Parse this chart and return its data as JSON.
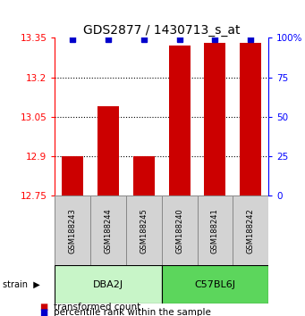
{
  "title": "GDS2877 / 1430713_s_at",
  "samples": [
    "GSM188243",
    "GSM188244",
    "GSM188245",
    "GSM188240",
    "GSM188241",
    "GSM188242"
  ],
  "group_colors": [
    "#c8f5c8",
    "#5cd65c"
  ],
  "transformed_counts": [
    12.9,
    13.09,
    12.9,
    13.32,
    13.33,
    13.33
  ],
  "percentile_ranks": [
    99,
    99,
    99,
    99,
    99,
    99
  ],
  "ylim": [
    12.75,
    13.35
  ],
  "yticks": [
    12.75,
    12.9,
    13.05,
    13.2,
    13.35
  ],
  "ytick_labels": [
    "12.75",
    "12.9",
    "13.05",
    "13.2",
    "13.35"
  ],
  "right_yticks": [
    0,
    25,
    50,
    75,
    100
  ],
  "right_ytick_labels": [
    "0",
    "25",
    "50",
    "75",
    "100%"
  ],
  "grid_values": [
    12.9,
    13.05,
    13.2
  ],
  "bar_color": "#cc0000",
  "dot_color": "#0000cc",
  "bar_width": 0.6,
  "sample_box_color": "#d3d3d3",
  "title_fontsize": 10,
  "tick_fontsize": 7.5,
  "legend_fontsize": 7.5
}
